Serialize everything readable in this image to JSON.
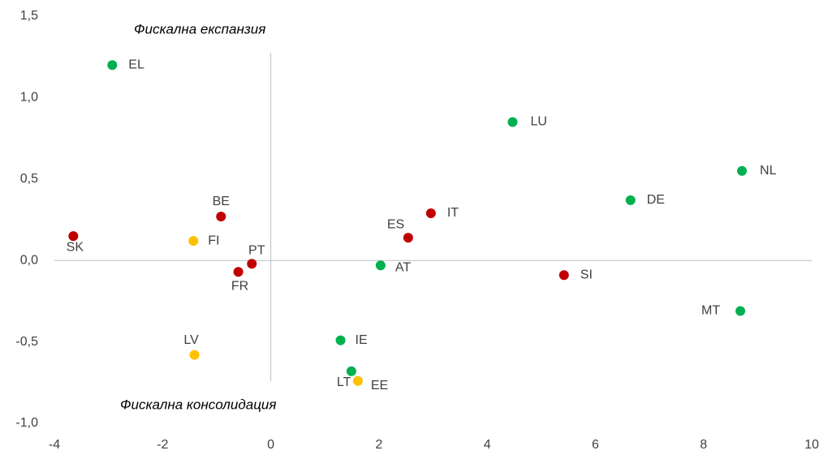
{
  "chart_data": {
    "type": "scatter",
    "annotations": [
      "Фискална експанзия",
      "Фискална консолидация"
    ],
    "labels": [
      "EL",
      "LU",
      "NL",
      "DE",
      "IT",
      "BE",
      "SK",
      "FI",
      "ES",
      "PT",
      "FR",
      "AT",
      "SI",
      "MT",
      "IE",
      "LV",
      "LT",
      "EE"
    ],
    "x": [
      -2.93,
      4.47,
      8.71,
      6.65,
      2.96,
      -0.92,
      -3.65,
      -1.43,
      2.54,
      -0.35,
      -0.6,
      2.03,
      5.42,
      8.68,
      1.29,
      -1.41,
      1.49,
      1.61
    ],
    "values": [
      1.2,
      0.85,
      0.55,
      0.37,
      0.29,
      0.27,
      0.15,
      0.12,
      0.14,
      -0.02,
      -0.07,
      -0.03,
      -0.09,
      -0.31,
      -0.49,
      -0.58,
      -0.68,
      -0.74
    ],
    "colors": [
      "#00b050",
      "#00b050",
      "#00b050",
      "#00b050",
      "#c00000",
      "#c00000",
      "#c00000",
      "#ffc000",
      "#c00000",
      "#c00000",
      "#c00000",
      "#00b050",
      "#c00000",
      "#00b050",
      "#00b050",
      "#ffc000",
      "#00b050",
      "#ffc000"
    ],
    "xlim": [
      -4,
      10
    ],
    "xticks": [
      -4,
      -2,
      0,
      2,
      4,
      6,
      8,
      10
    ],
    "ylim": [
      -1.0,
      1.5
    ],
    "yticks": [
      {
        "value": -1.0,
        "label": "-1,0"
      },
      {
        "value": -0.5,
        "label": "-0,5"
      },
      {
        "value": 0.0,
        "label": "0,0"
      },
      {
        "value": 0.5,
        "label": "0,5"
      },
      {
        "value": 1.0,
        "label": "1,0"
      },
      {
        "value": 1.5,
        "label": "1,5"
      }
    ]
  }
}
